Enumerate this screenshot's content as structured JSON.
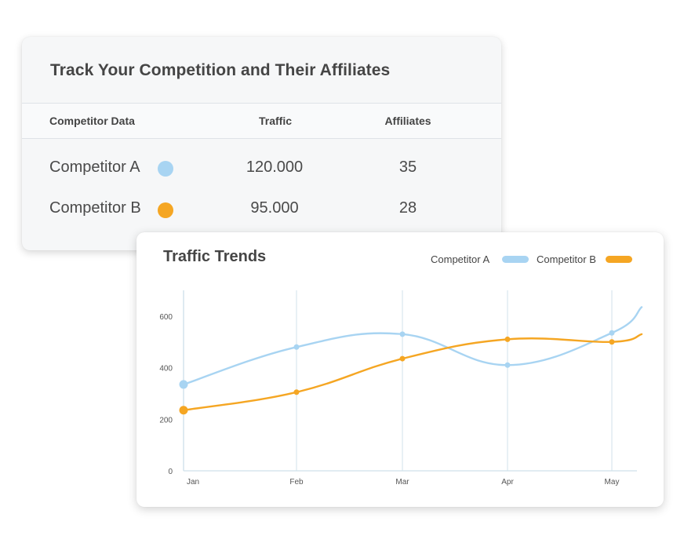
{
  "table_card": {
    "title": "Track Your Competition and Their Affiliates",
    "headers": [
      "Competitor Data",
      "Traffic",
      "Affiliates"
    ],
    "rows": [
      {
        "name": "Competitor A",
        "traffic": "120.000",
        "affiliates": "35",
        "color": "#a8d4f2"
      },
      {
        "name": "Competitor B",
        "traffic": "95.000",
        "affiliates": "28",
        "color": "#f5a623"
      }
    ]
  },
  "chart_card": {
    "title": "Traffic Trends",
    "legend": [
      {
        "label": "Competitor A",
        "color": "#a8d4f2"
      },
      {
        "label": "Competitor B",
        "color": "#f5a623"
      }
    ]
  },
  "chart_data": {
    "type": "line",
    "title": "Traffic Trends",
    "xlabel": "",
    "ylabel": "",
    "categories": [
      "Jan",
      "Feb",
      "Mar",
      "Apr",
      "May"
    ],
    "ylim": [
      0,
      700
    ],
    "yticks": [
      0,
      200,
      400,
      600
    ],
    "series": [
      {
        "name": "Competitor A",
        "color": "#a8d4f2",
        "values": [
          335,
          480,
          530,
          410,
          535
        ],
        "end_value": 635
      },
      {
        "name": "Competitor B",
        "color": "#f5a623",
        "values": [
          235,
          305,
          435,
          510,
          500
        ],
        "end_value": 530
      }
    ]
  }
}
